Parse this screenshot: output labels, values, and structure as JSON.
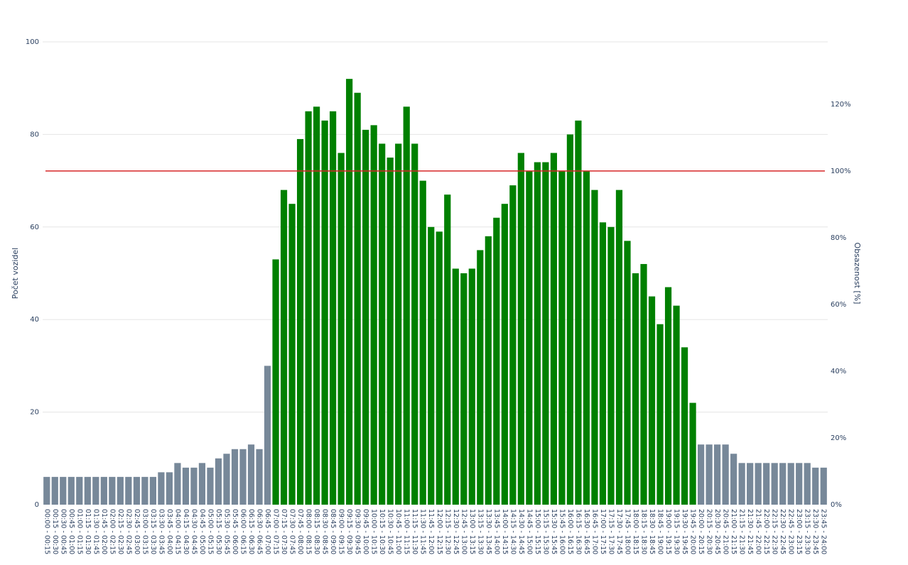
{
  "chart_data": {
    "type": "bar",
    "ylabel": "Počet vozidel",
    "y2label": "Obsazenost [%]",
    "categories": [
      "00:00 - 00:15",
      "00:15 - 00:30",
      "00:30 - 00:45",
      "00:45 - 01:00",
      "01:00 - 01:15",
      "01:15 - 01:30",
      "01:30 - 01:45",
      "01:45 - 02:00",
      "02:00 - 02:15",
      "02:15 - 02:30",
      "02:30 - 02:45",
      "02:45 - 03:00",
      "03:00 - 03:15",
      "03:15 - 03:30",
      "03:30 - 03:45",
      "03:45 - 04:00",
      "04:00 - 04:15",
      "04:15 - 04:30",
      "04:30 - 04:45",
      "04:45 - 05:00",
      "05:00 - 05:15",
      "05:15 - 05:30",
      "05:30 - 05:45",
      "05:45 - 06:00",
      "06:00 - 06:15",
      "06:15 - 06:30",
      "06:30 - 06:45",
      "06:45 - 07:00",
      "07:00 - 07:15",
      "07:15 - 07:30",
      "07:30 - 07:45",
      "07:45 - 08:00",
      "08:00 - 08:15",
      "08:15 - 08:30",
      "08:30 - 08:45",
      "08:45 - 09:00",
      "09:00 - 09:15",
      "09:15 - 09:30",
      "09:30 - 09:45",
      "09:45 - 10:00",
      "10:00 - 10:15",
      "10:15 - 10:30",
      "10:30 - 10:45",
      "10:45 - 11:00",
      "11:00 - 11:15",
      "11:15 - 11:30",
      "11:30 - 11:45",
      "11:45 - 12:00",
      "12:00 - 12:15",
      "12:15 - 12:30",
      "12:30 - 12:45",
      "12:45 - 13:00",
      "13:00 - 13:15",
      "13:15 - 13:30",
      "13:30 - 13:45",
      "13:45 - 14:00",
      "14:00 - 14:15",
      "14:15 - 14:30",
      "14:30 - 14:45",
      "14:45 - 15:00",
      "15:00 - 15:15",
      "15:15 - 15:30",
      "15:30 - 15:45",
      "15:45 - 16:00",
      "16:00 - 16:15",
      "16:15 - 16:30",
      "16:30 - 16:45",
      "16:45 - 17:00",
      "17:00 - 17:15",
      "17:15 - 17:30",
      "17:30 - 17:45",
      "17:45 - 18:00",
      "18:00 - 18:15",
      "18:15 - 18:30",
      "18:30 - 18:45",
      "18:45 - 19:00",
      "19:00 - 19:15",
      "19:15 - 19:30",
      "19:30 - 19:45",
      "19:45 - 20:00",
      "20:00 - 20:15",
      "20:15 - 20:30",
      "20:30 - 20:45",
      "20:45 - 21:00",
      "21:00 - 21:15",
      "21:15 - 21:30",
      "21:30 - 21:45",
      "21:45 - 22:00",
      "22:00 - 22:15",
      "22:15 - 22:30",
      "22:30 - 22:45",
      "22:45 - 23:00",
      "23:00 - 23:15",
      "23:15 - 23:30",
      "23:30 - 23:45",
      "23:45 - 24:00"
    ],
    "values": [
      6,
      6,
      6,
      6,
      6,
      6,
      6,
      6,
      6,
      6,
      6,
      6,
      6,
      6,
      7,
      7,
      9,
      8,
      8,
      9,
      8,
      10,
      11,
      12,
      12,
      13,
      12,
      30,
      53,
      68,
      65,
      79,
      85,
      86,
      83,
      85,
      76,
      92,
      89,
      81,
      82,
      78,
      75,
      78,
      86,
      78,
      70,
      60,
      59,
      67,
      51,
      50,
      51,
      55,
      58,
      62,
      65,
      69,
      76,
      72,
      74,
      74,
      76,
      72,
      80,
      83,
      72,
      68,
      61,
      60,
      68,
      57,
      50,
      52,
      45,
      39,
      47,
      43,
      34,
      22,
      13,
      13,
      13,
      13,
      11,
      9,
      9,
      9,
      9,
      9,
      9,
      9,
      9,
      9,
      8,
      8
    ],
    "colors": [
      "#778899",
      "#778899",
      "#778899",
      "#778899",
      "#778899",
      "#778899",
      "#778899",
      "#778899",
      "#778899",
      "#778899",
      "#778899",
      "#778899",
      "#778899",
      "#778899",
      "#778899",
      "#778899",
      "#778899",
      "#778899",
      "#778899",
      "#778899",
      "#778899",
      "#778899",
      "#778899",
      "#778899",
      "#778899",
      "#778899",
      "#778899",
      "#778899",
      "#008000",
      "#008000",
      "#008000",
      "#008000",
      "#008000",
      "#008000",
      "#008000",
      "#008000",
      "#008000",
      "#008000",
      "#008000",
      "#008000",
      "#008000",
      "#008000",
      "#008000",
      "#008000",
      "#008000",
      "#008000",
      "#008000",
      "#008000",
      "#008000",
      "#008000",
      "#008000",
      "#008000",
      "#008000",
      "#008000",
      "#008000",
      "#008000",
      "#008000",
      "#008000",
      "#008000",
      "#008000",
      "#008000",
      "#008000",
      "#008000",
      "#008000",
      "#008000",
      "#008000",
      "#008000",
      "#008000",
      "#008000",
      "#008000",
      "#008000",
      "#008000",
      "#008000",
      "#008000",
      "#008000",
      "#008000",
      "#008000",
      "#008000",
      "#008000",
      "#008000",
      "#778899",
      "#778899",
      "#778899",
      "#778899",
      "#778899",
      "#778899",
      "#778899",
      "#778899",
      "#778899",
      "#778899",
      "#778899",
      "#778899",
      "#778899",
      "#778899",
      "#778899",
      "#778899"
    ],
    "ylim": [
      0,
      100
    ],
    "yticks": [
      0,
      20,
      40,
      60,
      80,
      100
    ],
    "y2lim": [
      0,
      138.7
    ],
    "y2ticks": [
      {
        "value": 0,
        "label": "0%"
      },
      {
        "value": 20,
        "label": "20%"
      },
      {
        "value": 40,
        "label": "40%"
      },
      {
        "value": 60,
        "label": "60%"
      },
      {
        "value": 80,
        "label": "80%"
      },
      {
        "value": 100,
        "label": "100%"
      },
      {
        "value": 120,
        "label": "120%"
      }
    ],
    "reference_line": {
      "value": 100,
      "axis": "y2",
      "color": "#d62728"
    },
    "grid": true
  }
}
